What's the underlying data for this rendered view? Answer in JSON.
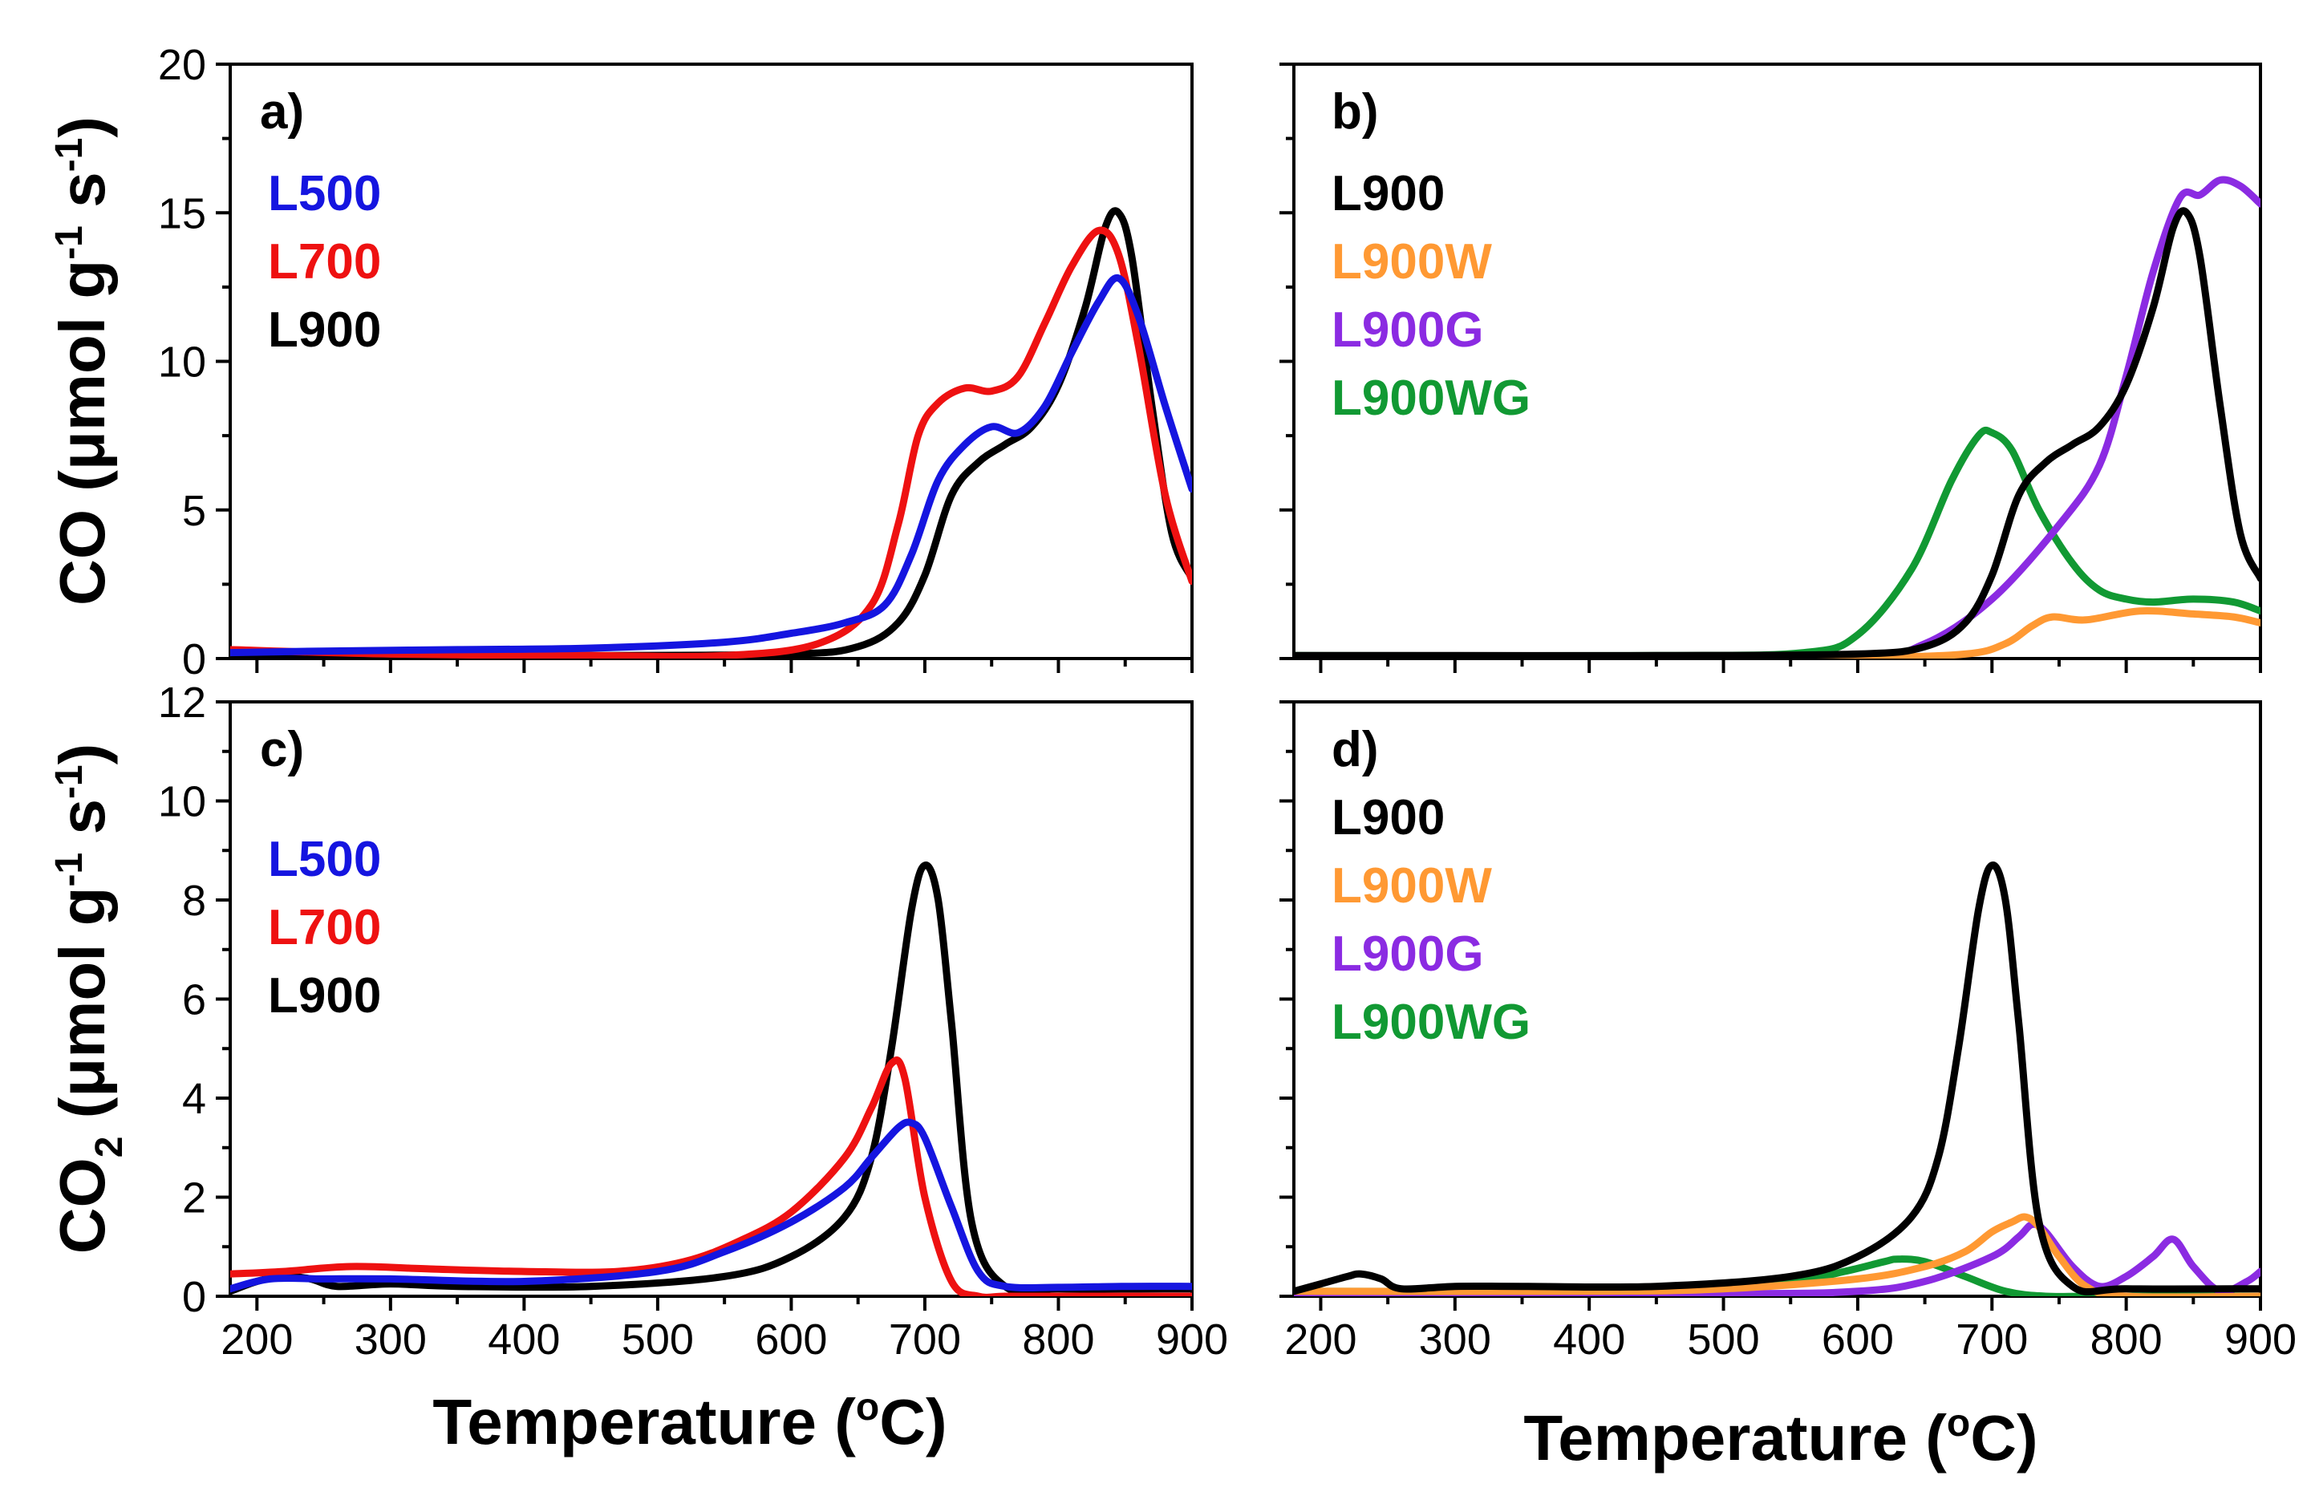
{
  "figure": {
    "ylabel_co": "CO (μmol g",
    "ylabel_co_sup1": "-1",
    "ylabel_co_mid": " s",
    "ylabel_co_sup2": "-1",
    "ylabel_co_end": ")",
    "ylabel_co2_a": "CO",
    "ylabel_co2_sub": "2",
    "ylabel_co2_b": " (μmol g",
    "ylabel_co2_sup1": "-1",
    "ylabel_co2_mid": " s",
    "ylabel_co2_sup2": "-1",
    "ylabel_co2_end": ")",
    "xlabel_left_a": "Temperature (",
    "xlabel_left_sup": "o",
    "xlabel_left_b": "C)",
    "xlabel_right_a": "Temperature (",
    "xlabel_right_sup": "o",
    "xlabel_right_b": "C)"
  },
  "colors": {
    "L500": "#1515e0",
    "L700": "#ee1111",
    "L900": "#000000",
    "L900W": "#ff9933",
    "L900G": "#8b2be2",
    "L900WG": "#119933"
  },
  "chart_data": [
    {
      "type": "line",
      "panel": "a)",
      "xlabel": "Temperature (oC)",
      "ylabel": "CO (μmol g-1 s-1)",
      "xlim": [
        180,
        900
      ],
      "ylim": [
        0,
        20
      ],
      "xticks": [
        200,
        300,
        400,
        500,
        600,
        700,
        800,
        900
      ],
      "yticks": [
        0,
        5,
        10,
        15,
        20
      ],
      "legend": [
        "L500",
        "L700",
        "L900"
      ],
      "series": [
        {
          "name": "L500",
          "x": [
            180,
            250,
            350,
            450,
            550,
            600,
            640,
            670,
            690,
            710,
            730,
            750,
            770,
            790,
            810,
            830,
            845,
            860,
            880,
            900
          ],
          "y": [
            0.2,
            0.25,
            0.3,
            0.35,
            0.55,
            0.85,
            1.2,
            1.8,
            3.5,
            6.0,
            7.2,
            7.8,
            7.6,
            8.5,
            10.3,
            12.0,
            12.8,
            11.5,
            8.5,
            5.7
          ]
        },
        {
          "name": "L700",
          "x": [
            180,
            300,
            450,
            550,
            620,
            660,
            680,
            695,
            710,
            730,
            750,
            770,
            790,
            810,
            830,
            845,
            860,
            880,
            900
          ],
          "y": [
            0.3,
            0.15,
            0.1,
            0.1,
            0.5,
            1.8,
            4.5,
            7.5,
            8.6,
            9.1,
            9.0,
            9.5,
            11.3,
            13.2,
            14.4,
            13.6,
            10.5,
            5.5,
            2.6
          ]
        },
        {
          "name": "L900",
          "x": [
            180,
            300,
            450,
            600,
            650,
            680,
            700,
            720,
            740,
            760,
            780,
            800,
            820,
            835,
            845,
            855,
            870,
            885,
            900
          ],
          "y": [
            0.1,
            0.1,
            0.1,
            0.15,
            0.4,
            1.2,
            2.8,
            5.5,
            6.6,
            7.2,
            7.8,
            9.2,
            11.8,
            14.5,
            15.0,
            13.5,
            8.5,
            4.2,
            2.7
          ]
        }
      ]
    },
    {
      "type": "line",
      "panel": "b)",
      "xlabel": "Temperature (oC)",
      "ylabel": "",
      "xlim": [
        180,
        900
      ],
      "ylim": [
        0,
        20
      ],
      "xticks": [
        200,
        300,
        400,
        500,
        600,
        700,
        800,
        900
      ],
      "yticks": [
        0,
        5,
        10,
        15,
        20
      ],
      "legend": [
        "L900",
        "L900W",
        "L900G",
        "L900WG"
      ],
      "series": [
        {
          "name": "L900",
          "x": [
            180,
            300,
            450,
            600,
            650,
            680,
            700,
            720,
            740,
            760,
            780,
            800,
            820,
            835,
            845,
            855,
            870,
            885,
            900
          ],
          "y": [
            0.1,
            0.1,
            0.1,
            0.15,
            0.4,
            1.2,
            2.8,
            5.5,
            6.6,
            7.2,
            7.8,
            9.2,
            11.8,
            14.5,
            15.0,
            13.5,
            8.5,
            4.2,
            2.7
          ]
        },
        {
          "name": "L900W",
          "x": [
            180,
            400,
            600,
            680,
            710,
            730,
            745,
            770,
            810,
            850,
            880,
            900
          ],
          "y": [
            0.05,
            0.05,
            0.05,
            0.15,
            0.5,
            1.1,
            1.4,
            1.3,
            1.6,
            1.5,
            1.4,
            1.2
          ]
        },
        {
          "name": "L900G",
          "x": [
            180,
            400,
            600,
            650,
            700,
            750,
            780,
            800,
            820,
            840,
            855,
            870,
            885,
            900
          ],
          "y": [
            0.05,
            0.05,
            0.1,
            0.5,
            2.0,
            4.5,
            6.5,
            9.5,
            13.0,
            15.5,
            15.6,
            16.1,
            15.9,
            15.3
          ]
        },
        {
          "name": "L900WG",
          "x": [
            180,
            450,
            560,
            600,
            640,
            670,
            690,
            700,
            715,
            735,
            760,
            780,
            800,
            820,
            850,
            880,
            900
          ],
          "y": [
            0.1,
            0.1,
            0.2,
            0.8,
            3.0,
            6.0,
            7.5,
            7.6,
            7.0,
            5.0,
            3.2,
            2.3,
            2.0,
            1.9,
            2.0,
            1.9,
            1.6
          ]
        }
      ]
    },
    {
      "type": "line",
      "panel": "c)",
      "xlabel": "Temperature (oC)",
      "ylabel": "CO2 (μmol g-1 s-1)",
      "xlim": [
        180,
        900
      ],
      "ylim": [
        0,
        12
      ],
      "xticks": [
        200,
        300,
        400,
        500,
        600,
        700,
        800,
        900
      ],
      "yticks": [
        0,
        2,
        4,
        6,
        8,
        10,
        12
      ],
      "legend": [
        "L500",
        "L700",
        "L900"
      ],
      "series": [
        {
          "name": "L500",
          "x": [
            180,
            210,
            250,
            300,
            400,
            500,
            550,
            600,
            640,
            660,
            680,
            690,
            700,
            720,
            740,
            760,
            800,
            850,
            900
          ],
          "y": [
            0.15,
            0.35,
            0.35,
            0.35,
            0.3,
            0.5,
            0.9,
            1.5,
            2.2,
            2.8,
            3.4,
            3.5,
            3.2,
            1.8,
            0.5,
            0.2,
            0.18,
            0.2,
            0.2
          ]
        },
        {
          "name": "L700",
          "x": [
            180,
            220,
            270,
            330,
            400,
            470,
            520,
            560,
            600,
            640,
            660,
            675,
            685,
            700,
            720,
            740,
            760,
            800,
            900
          ],
          "y": [
            0.45,
            0.5,
            0.6,
            0.55,
            0.5,
            0.5,
            0.7,
            1.1,
            1.7,
            2.8,
            3.8,
            4.7,
            4.4,
            2.0,
            0.3,
            0.0,
            0.0,
            0.0,
            0.0
          ]
        },
        {
          "name": "L900",
          "x": [
            180,
            200,
            220,
            240,
            260,
            300,
            350,
            450,
            550,
            600,
            640,
            660,
            675,
            690,
            700,
            710,
            720,
            735,
            760,
            800,
            900
          ],
          "y": [
            0.1,
            0.3,
            0.4,
            0.35,
            0.2,
            0.25,
            0.2,
            0.2,
            0.4,
            0.8,
            1.6,
            2.8,
            5.0,
            7.8,
            8.7,
            8.0,
            5.5,
            1.5,
            0.2,
            0.15,
            0.15
          ]
        }
      ]
    },
    {
      "type": "line",
      "panel": "d)",
      "xlabel": "Temperature (oC)",
      "ylabel": "",
      "xlim": [
        180,
        900
      ],
      "ylim": [
        0,
        12
      ],
      "xticks": [
        200,
        300,
        400,
        500,
        600,
        700,
        800,
        900
      ],
      "yticks": [
        0,
        2,
        4,
        6,
        8,
        10,
        12
      ],
      "legend": [
        "L900",
        "L900W",
        "L900G",
        "L900WG"
      ],
      "series": [
        {
          "name": "L900",
          "x": [
            180,
            200,
            220,
            230,
            245,
            260,
            300,
            350,
            450,
            550,
            600,
            640,
            660,
            675,
            690,
            700,
            710,
            720,
            735,
            760,
            800,
            900
          ],
          "y": [
            0.1,
            0.25,
            0.4,
            0.45,
            0.35,
            0.15,
            0.2,
            0.2,
            0.2,
            0.4,
            0.8,
            1.6,
            2.8,
            5.0,
            7.8,
            8.7,
            8.0,
            5.5,
            1.5,
            0.2,
            0.15,
            0.15
          ]
        },
        {
          "name": "L900W",
          "x": [
            180,
            400,
            500,
            600,
            650,
            680,
            700,
            715,
            725,
            735,
            750,
            770,
            800,
            900
          ],
          "y": [
            0.1,
            0.1,
            0.15,
            0.35,
            0.6,
            0.9,
            1.3,
            1.5,
            1.6,
            1.4,
            0.8,
            0.2,
            0.0,
            0.0
          ]
        },
        {
          "name": "L900G",
          "x": [
            180,
            500,
            600,
            650,
            700,
            720,
            730,
            740,
            760,
            780,
            800,
            820,
            835,
            850,
            870,
            890,
            900
          ],
          "y": [
            0.05,
            0.05,
            0.1,
            0.3,
            0.8,
            1.2,
            1.45,
            1.3,
            0.6,
            0.2,
            0.4,
            0.8,
            1.15,
            0.6,
            0.1,
            0.3,
            0.5
          ]
        },
        {
          "name": "L900WG",
          "x": [
            180,
            350,
            450,
            550,
            590,
            620,
            630,
            650,
            680,
            710,
            740,
            780,
            900
          ],
          "y": [
            0.1,
            0.1,
            0.15,
            0.3,
            0.5,
            0.7,
            0.75,
            0.7,
            0.4,
            0.1,
            0.0,
            0.0,
            0.0
          ]
        }
      ]
    }
  ]
}
